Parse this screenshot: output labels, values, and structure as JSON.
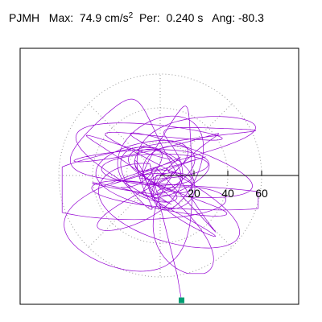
{
  "header": {
    "station": "PJMH",
    "max_label": "Max:",
    "max_value": "74.9",
    "max_unit": "cm/s",
    "max_unit_exp": "2",
    "period_label": "Per:",
    "period_value": "0.240 s",
    "angle_label": "Ang:",
    "angle_value": "-80.3"
  },
  "chart_data": {
    "type": "line",
    "title": "",
    "xlabel": "",
    "ylabel": "",
    "radial_ticks": [
      "20",
      "40",
      "60"
    ],
    "radial_tick_values": [
      20,
      40,
      60
    ],
    "xlim": [
      -80,
      80
    ],
    "ylim": [
      -80,
      80
    ],
    "grid": true,
    "grid_style": "dotted concentric circles and radial spokes every 45 degrees",
    "series": [
      {
        "type": "orbit",
        "color": "#9400d3",
        "peak": {
          "angle_deg": -80.3,
          "magnitude": 74.9,
          "marker_color": "#009e73"
        }
      }
    ]
  }
}
